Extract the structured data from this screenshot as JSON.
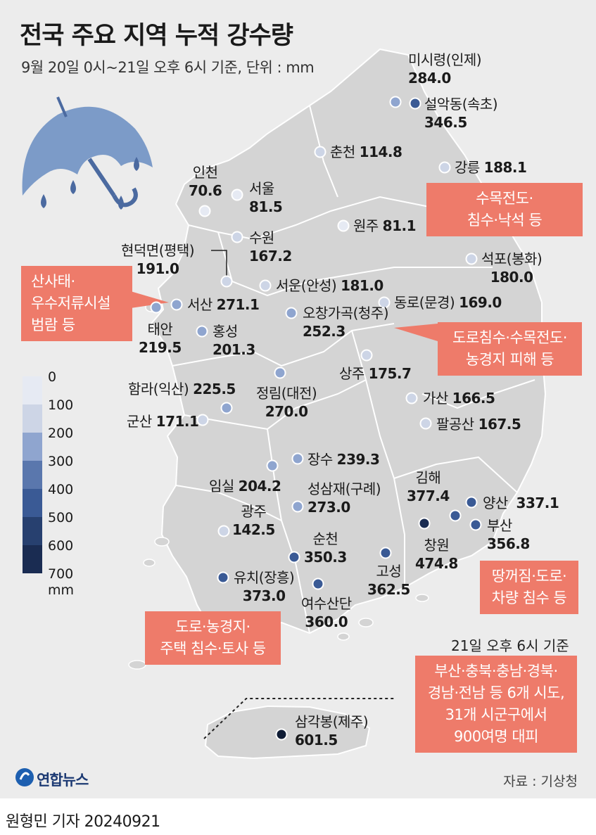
{
  "title": "전국 주요 지역 누적 강수량",
  "subtitle": "9월 20일 0시~21일 오후 6시 기준, 단위 : mm",
  "legend": {
    "labels": [
      "0",
      "100",
      "200",
      "300",
      "400",
      "500",
      "600",
      "700"
    ],
    "unit": "mm",
    "colors": [
      "#e6eaf3",
      "#cdd5e6",
      "#8fa5cf",
      "#5a77ad",
      "#3a5a95",
      "#27406f",
      "#1a2c52",
      "#0f1c35"
    ]
  },
  "stations": [
    {
      "name": "미시령(인제)",
      "value": "284.0",
      "color": "#8fa5cf"
    },
    {
      "name": "설악동(속초)",
      "value": "346.5",
      "color": "#3a5a95"
    },
    {
      "name": "춘천",
      "value": "114.8",
      "color": "#cdd5e6"
    },
    {
      "name": "강릉",
      "value": "188.1",
      "color": "#cdd5e6"
    },
    {
      "name": "인천",
      "value": "70.6",
      "color": "#e6eaf3"
    },
    {
      "name": "서울",
      "value": "81.5",
      "color": "#e6eaf3"
    },
    {
      "name": "원주",
      "value": "81.1",
      "color": "#e6eaf3"
    },
    {
      "name": "수원",
      "value": "167.2",
      "color": "#cdd5e6"
    },
    {
      "name": "현덕면(평택)",
      "value": "191.0",
      "color": "#cdd5e6"
    },
    {
      "name": "석포(봉화)",
      "value": "180.0",
      "color": "#cdd5e6"
    },
    {
      "name": "서운(안성)",
      "value": "181.0",
      "color": "#cdd5e6"
    },
    {
      "name": "서산",
      "value": "271.1",
      "color": "#8fa5cf"
    },
    {
      "name": "동로(문경)",
      "value": "169.0",
      "color": "#cdd5e6"
    },
    {
      "name": "오창가곡(청주)",
      "value": "252.3",
      "color": "#8fa5cf"
    },
    {
      "name": "태안",
      "value": "219.5",
      "color": "#8fa5cf"
    },
    {
      "name": "홍성",
      "value": "201.3",
      "color": "#8fa5cf"
    },
    {
      "name": "상주",
      "value": "175.7",
      "color": "#cdd5e6"
    },
    {
      "name": "함라(익산)",
      "value": "225.5",
      "color": "#8fa5cf"
    },
    {
      "name": "정림(대전)",
      "value": "270.0",
      "color": "#8fa5cf"
    },
    {
      "name": "군산",
      "value": "171.1",
      "color": "#cdd5e6"
    },
    {
      "name": "가산",
      "value": "166.5",
      "color": "#cdd5e6"
    },
    {
      "name": "팔공산",
      "value": "167.5",
      "color": "#cdd5e6"
    },
    {
      "name": "장수",
      "value": "239.3",
      "color": "#8fa5cf"
    },
    {
      "name": "임실",
      "value": "204.2",
      "color": "#8fa5cf"
    },
    {
      "name": "성삼재(구례)",
      "value": "273.0",
      "color": "#8fa5cf"
    },
    {
      "name": "김해",
      "value": "377.4",
      "color": "#3a5a95"
    },
    {
      "name": "양산",
      "value": "337.1",
      "color": "#3a5a95"
    },
    {
      "name": "광주",
      "value": "142.5",
      "color": "#cdd5e6"
    },
    {
      "name": "부산",
      "value": "356.8",
      "color": "#3a5a95"
    },
    {
      "name": "순천",
      "value": "350.3",
      "color": "#3a5a95"
    },
    {
      "name": "창원",
      "value": "474.8",
      "color": "#1a2c52"
    },
    {
      "name": "고성",
      "value": "362.5",
      "color": "#3a5a95"
    },
    {
      "name": "유치(장흥)",
      "value": "373.0",
      "color": "#3a5a95"
    },
    {
      "name": "여수산단",
      "value": "360.0",
      "color": "#3a5a95"
    },
    {
      "name": "삼각봉(제주)",
      "value": "601.5",
      "color": "#0f1c35"
    }
  ],
  "callouts": {
    "gangwon": [
      "수목전도·",
      "침수·낙석 등"
    ],
    "chungnam": [
      "산사태·",
      "우수저류시설",
      "범람 등"
    ],
    "chungbuk": [
      "도로침수·수목전도·",
      "농경지 피해 등"
    ],
    "busan": [
      "땅꺼짐·도로·",
      "차량 침수 등"
    ],
    "jeonnam": [
      "도로·농경지·",
      "주택 침수·토사 등"
    ],
    "evac": [
      "부산·충북·충남·경북·",
      "경남·전남 등 6개 시도,",
      "31개 시군구에서",
      "900여명 대피"
    ]
  },
  "evac_timestamp": "21일 오후 6시 기준",
  "brand": "연합뉴스",
  "source": "자료 : 기상청",
  "credit": "원형민 기자  20240921"
}
